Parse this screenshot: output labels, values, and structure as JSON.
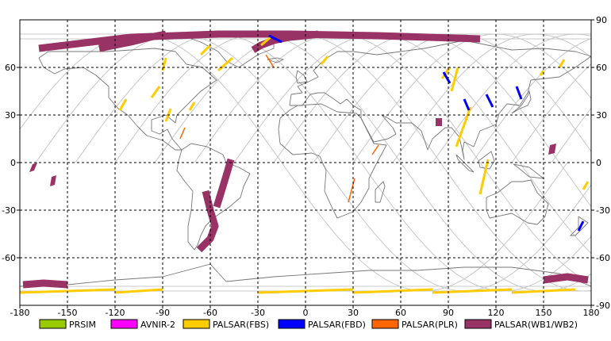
{
  "map": {
    "x_ticks": [
      "-180",
      "-150",
      "-120",
      "-90",
      "-60",
      "-30",
      "0",
      "30",
      "60",
      "90",
      "120",
      "150",
      "180"
    ],
    "y_ticks_left": [
      "60",
      "30",
      "0",
      "-30",
      "-60"
    ],
    "y_ticks_right": [
      "90",
      "60",
      "30",
      "0",
      "-30",
      "-60",
      "-90"
    ],
    "lon_range": [
      -180,
      180
    ],
    "lat_range": [
      -90,
      90
    ],
    "grid": true,
    "grid_style": "dashed",
    "colors": {
      "coast": "#777777",
      "orbit_track": "#c8c8c8",
      "grid": "#000000"
    }
  },
  "legend": {
    "items": [
      {
        "label": "PRSIM",
        "color": "#99cc00"
      },
      {
        "label": "AVNIR-2",
        "color": "#ff00ff"
      },
      {
        "label": "PALSAR(FBS)",
        "color": "#ffcc00"
      },
      {
        "label": "PALSAR(FBD)",
        "color": "#0000ff"
      },
      {
        "label": "PALSAR(PLR)",
        "color": "#ff6600"
      },
      {
        "label": "PALSAR(WB1/WB2)",
        "color": "#993366"
      }
    ]
  },
  "observations": {
    "wb": [
      {
        "lon": [
          -168,
          -110,
          -55,
          -10,
          45,
          110
        ],
        "lat": [
          72,
          79,
          81,
          81,
          80,
          78
        ]
      },
      {
        "lon": [
          -130,
          -120,
          -110,
          -98,
          -88
        ],
        "lat": [
          72,
          74,
          76,
          79,
          81
        ]
      },
      {
        "lon": [
          -33,
          -28,
          -20,
          -10,
          0,
          8
        ],
        "lat": [
          71,
          74,
          77,
          79,
          80,
          81
        ]
      },
      {
        "lon": [
          -67,
          -60,
          -57,
          -60,
          -63
        ],
        "lat": [
          -55,
          -48,
          -40,
          -30,
          -18
        ]
      },
      {
        "lon": [
          -56,
          -52,
          -49,
          -47
        ],
        "lat": [
          -28,
          -15,
          -5,
          2
        ]
      },
      {
        "lon": [
          -178,
          -165,
          -150
        ],
        "lat": [
          -77,
          -76,
          -77
        ]
      },
      {
        "lon": [
          150,
          165,
          178
        ],
        "lat": [
          -74,
          -72,
          -74
        ]
      }
    ],
    "wb_patches": [
      {
        "lon": [
          -172,
          -169,
          -171,
          -174
        ],
        "lat": [
          -1,
          0,
          -5,
          -6
        ]
      },
      {
        "lon": [
          -160,
          -157,
          -158,
          -161
        ],
        "lat": [
          -9,
          -8,
          -14,
          -15
        ]
      },
      {
        "lon": [
          82,
          86,
          86,
          82
        ],
        "lat": [
          28,
          28,
          23,
          23
        ]
      },
      {
        "lon": [
          154,
          158,
          157,
          153
        ],
        "lat": [
          11,
          12,
          6,
          5
        ]
      }
    ],
    "fbs": [
      {
        "lon": [
          -117,
          -113
        ],
        "lat": [
          33,
          40
        ]
      },
      {
        "lon": [
          -97,
          -92
        ],
        "lat": [
          41,
          48
        ]
      },
      {
        "lon": [
          -88,
          -85
        ],
        "lat": [
          26,
          34
        ]
      },
      {
        "lon": [
          -73,
          -70
        ],
        "lat": [
          33,
          38
        ]
      },
      {
        "lon": [
          -90,
          -88
        ],
        "lat": [
          58,
          66
        ]
      },
      {
        "lon": [
          -55,
          -46
        ],
        "lat": [
          58,
          66
        ]
      },
      {
        "lon": [
          -66,
          -60
        ],
        "lat": [
          68,
          74
        ]
      },
      {
        "lon": [
          -28,
          -22
        ],
        "lat": [
          74,
          79
        ]
      },
      {
        "lon": [
          10,
          14
        ],
        "lat": [
          62,
          67
        ]
      },
      {
        "lon": [
          86,
          91
        ],
        "lat": [
          53,
          60
        ]
      },
      {
        "lon": [
          92,
          96
        ],
        "lat": [
          45,
          60
        ]
      },
      {
        "lon": [
          95,
          104
        ],
        "lat": [
          10,
          35
        ]
      },
      {
        "lon": [
          110,
          115
        ],
        "lat": [
          -20,
          2
        ]
      },
      {
        "lon": [
          148,
          150
        ],
        "lat": [
          55,
          58
        ]
      },
      {
        "lon": [
          160,
          163
        ],
        "lat": [
          60,
          65
        ]
      },
      {
        "lon": [
          175,
          178
        ],
        "lat": [
          -17,
          -12
        ]
      },
      {
        "lon": [
          -180,
          -120
        ],
        "lat": [
          -82,
          -80
        ]
      },
      {
        "lon": [
          -120,
          -90
        ],
        "lat": [
          -82,
          -80
        ]
      },
      {
        "lon": [
          -30,
          30
        ],
        "lat": [
          -82,
          -80
        ]
      },
      {
        "lon": [
          30,
          80
        ],
        "lat": [
          -82,
          -80
        ]
      },
      {
        "lon": [
          80,
          130
        ],
        "lat": [
          -82,
          -80
        ]
      },
      {
        "lon": [
          130,
          170
        ],
        "lat": [
          -82,
          -80
        ]
      }
    ],
    "fbd": [
      {
        "lon": [
          -23,
          -15
        ],
        "lat": [
          80,
          76
        ]
      },
      {
        "lon": [
          87,
          91
        ],
        "lat": [
          57,
          50
        ]
      },
      {
        "lon": [
          100,
          103
        ],
        "lat": [
          40,
          33
        ]
      },
      {
        "lon": [
          114,
          118
        ],
        "lat": [
          43,
          35
        ]
      },
      {
        "lon": [
          133,
          136
        ],
        "lat": [
          48,
          40
        ]
      },
      {
        "lon": [
          172,
          175
        ],
        "lat": [
          -43,
          -37
        ]
      }
    ],
    "plr": [
      {
        "lon": [
          -79,
          -76
        ],
        "lat": [
          15,
          22
        ]
      },
      {
        "lon": [
          -25,
          -20
        ],
        "lat": [
          68,
          60
        ]
      },
      {
        "lon": [
          27,
          31
        ],
        "lat": [
          -25,
          -10
        ]
      },
      {
        "lon": [
          42,
          46
        ],
        "lat": [
          5,
          11
        ]
      }
    ]
  }
}
